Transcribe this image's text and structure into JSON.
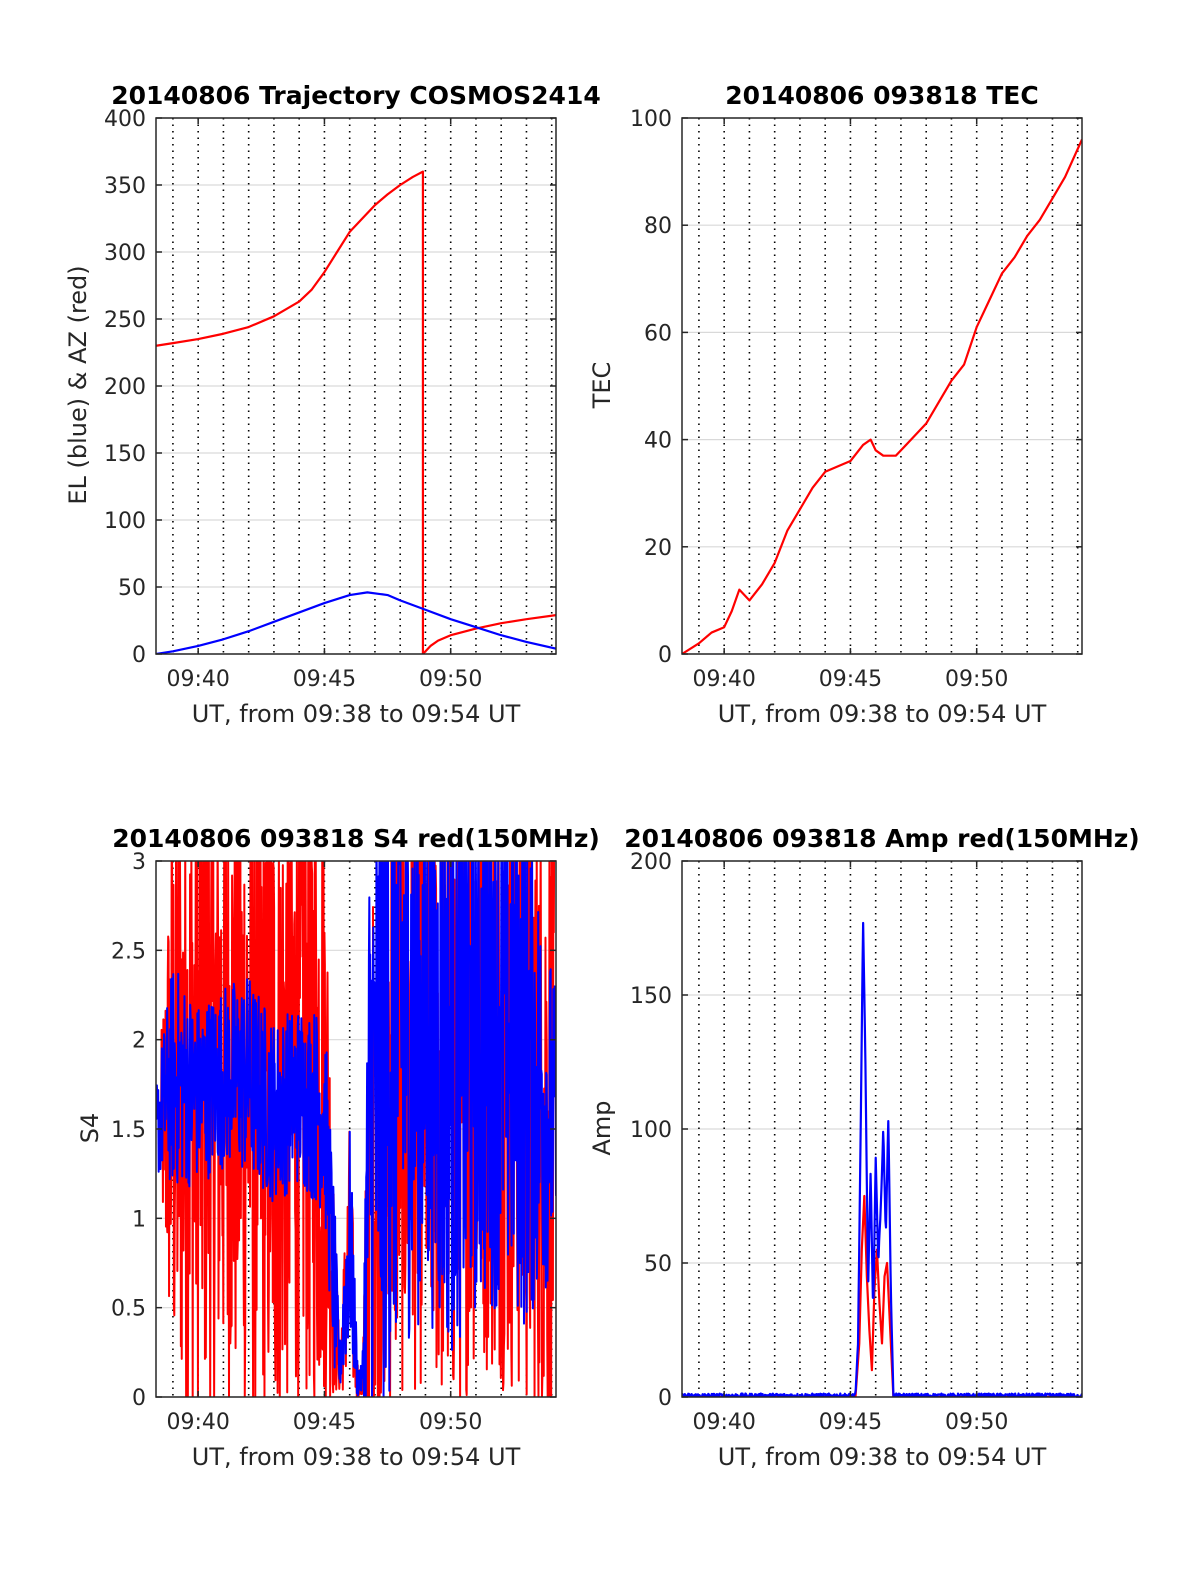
{
  "colors": {
    "red": "#ff0000",
    "blue": "#0000ff",
    "grid": "#d9d9d9",
    "axis": "#262626"
  },
  "chart_data": [
    {
      "type": "line",
      "title": "20140806 Trajectory COSMOS2414",
      "xlabel": "UT, from 09:38 to 09:54 UT",
      "ylabel": "EL (blue) & AZ (red)",
      "xlim": [
        38.33,
        54.17
      ],
      "ylim": [
        0,
        400
      ],
      "yticks": [
        0,
        50,
        100,
        150,
        200,
        250,
        300,
        350,
        400
      ],
      "xticks": [
        {
          "v": 40,
          "label": "09:40"
        },
        {
          "v": 45,
          "label": "09:45"
        },
        {
          "v": 50,
          "label": "09:50"
        }
      ],
      "minor_x_step": 1,
      "grid": true,
      "series": [
        {
          "color": "red",
          "x": [
            38.33,
            39,
            40,
            41,
            42,
            43,
            44,
            44.5,
            45,
            45.5,
            46,
            46.5,
            47,
            47.5,
            48,
            48.5,
            48.9,
            48.9,
            49.2,
            49.5,
            50,
            51,
            52,
            53,
            54.17
          ],
          "y": [
            230,
            232,
            235,
            239,
            244,
            252,
            263,
            272,
            285,
            300,
            315,
            325,
            335,
            343,
            350,
            356,
            360,
            0,
            6,
            10,
            14,
            19,
            23,
            26,
            29
          ]
        },
        {
          "color": "blue",
          "x": [
            38.33,
            39,
            40,
            41,
            42,
            43,
            44,
            45,
            46,
            46.7,
            47.5,
            48,
            49,
            50,
            51,
            52,
            53,
            54.17
          ],
          "y": [
            0,
            2,
            6,
            11,
            17,
            24,
            31,
            38,
            44,
            46,
            44,
            40,
            33,
            26,
            20,
            14,
            9,
            4
          ]
        }
      ]
    },
    {
      "type": "line",
      "title": "20140806 093818 TEC",
      "xlabel": "UT, from 09:38 to 09:54 UT",
      "ylabel": "TEC",
      "xlim": [
        38.33,
        54.17
      ],
      "ylim": [
        0,
        100
      ],
      "yticks": [
        0,
        20,
        40,
        60,
        80,
        100
      ],
      "xticks": [
        {
          "v": 40,
          "label": "09:40"
        },
        {
          "v": 45,
          "label": "09:45"
        },
        {
          "v": 50,
          "label": "09:50"
        }
      ],
      "minor_x_step": 1,
      "grid": true,
      "series": [
        {
          "color": "red",
          "x": [
            38.33,
            39,
            39.5,
            40,
            40.3,
            40.6,
            41,
            41.5,
            42,
            42.5,
            43,
            43.5,
            44,
            44.5,
            45,
            45.5,
            45.8,
            46,
            46.3,
            46.8,
            47.2,
            48,
            48.5,
            49,
            49.5,
            50,
            50.5,
            51,
            51.5,
            52,
            52.5,
            53,
            53.5,
            54.17
          ],
          "y": [
            0,
            2,
            4,
            5,
            8,
            12,
            10,
            13,
            17,
            23,
            27,
            31,
            34,
            35,
            36,
            39,
            40,
            38,
            37,
            37,
            39,
            43,
            47,
            51,
            54,
            61,
            66,
            71,
            74,
            78,
            81,
            85,
            89,
            96
          ]
        }
      ]
    },
    {
      "type": "line",
      "title": "20140806 093818 S4 red(150MHz)",
      "xlabel": "UT, from 09:38 to 09:54 UT",
      "ylabel": "S4",
      "xlim": [
        38.33,
        54.17
      ],
      "ylim": [
        0,
        3
      ],
      "yticks": [
        0,
        0.5,
        1,
        1.5,
        2,
        2.5,
        3
      ],
      "xticks": [
        {
          "v": 40,
          "label": "09:40"
        },
        {
          "v": 45,
          "label": "09:45"
        },
        {
          "v": 50,
          "label": "09:50"
        }
      ],
      "minor_x_step": 1,
      "grid": true,
      "series": [
        {
          "color": "red",
          "noisy": true,
          "x": [
            38.5,
            39,
            40,
            41,
            42,
            43,
            44,
            45,
            45.4,
            45.6,
            46,
            46.3,
            46.5,
            46.8,
            47.5,
            48,
            49,
            50,
            51,
            52,
            53,
            54.1
          ],
          "y": [
            1.5,
            1.7,
            1.8,
            1.9,
            1.8,
            1.7,
            1.9,
            1.8,
            0.5,
            0.15,
            0.8,
            0.1,
            0.05,
            1.2,
            1.8,
            1.9,
            2.0,
            1.7,
            2.1,
            2.0,
            1.8,
            1.5
          ],
          "amp": [
            0.3,
            1.4,
            1.5,
            1.5,
            1.5,
            1.5,
            1.5,
            1.5,
            0.4,
            0.1,
            0.6,
            0.1,
            0.05,
            1.2,
            1.5,
            1.5,
            1.5,
            1.5,
            1.5,
            1.5,
            1.5,
            1.5
          ]
        },
        {
          "color": "blue",
          "noisy": true,
          "x": [
            38.33,
            39,
            40,
            41,
            42,
            43,
            44,
            45,
            45.4,
            45.6,
            46,
            46.3,
            46.5,
            46.8,
            47.5,
            48,
            49,
            50,
            51,
            52,
            53,
            54.17
          ],
          "y": [
            1.5,
            1.8,
            1.7,
            1.8,
            1.8,
            1.6,
            1.7,
            1.6,
            0.6,
            0.15,
            0.9,
            0.12,
            0.08,
            1.5,
            2.0,
            2.2,
            2.0,
            1.9,
            2.0,
            2.2,
            1.9,
            1.5
          ],
          "amp": [
            0.2,
            0.5,
            0.4,
            0.4,
            0.45,
            0.4,
            0.4,
            0.45,
            0.4,
            0.1,
            0.5,
            0.1,
            0.05,
            1.5,
            1.6,
            1.5,
            1.2,
            1.3,
            1.2,
            1.3,
            1.2,
            0.6
          ]
        }
      ]
    },
    {
      "type": "line",
      "title": "20140806 093818 Amp red(150MHz)",
      "xlabel": "UT, from 09:38 to 09:54 UT",
      "ylabel": "Amp",
      "xlim": [
        38.33,
        54.17
      ],
      "ylim": [
        0,
        200
      ],
      "yticks": [
        0,
        50,
        100,
        150,
        200
      ],
      "xticks": [
        {
          "v": 40,
          "label": "09:40"
        },
        {
          "v": 45,
          "label": "09:45"
        },
        {
          "v": 50,
          "label": "09:50"
        }
      ],
      "minor_x_step": 1,
      "grid": true,
      "series": [
        {
          "color": "red",
          "x": [
            38.33,
            45.2,
            45.35,
            45.45,
            45.55,
            45.65,
            45.75,
            45.85,
            45.95,
            46.05,
            46.15,
            46.25,
            46.35,
            46.45,
            46.55,
            46.7,
            54.17
          ],
          "y": [
            0,
            0,
            20,
            55,
            75,
            45,
            25,
            10,
            40,
            55,
            35,
            20,
            45,
            50,
            30,
            0,
            0
          ]
        },
        {
          "color": "blue",
          "x": [
            38.33,
            45.2,
            45.3,
            45.4,
            45.5,
            45.55,
            45.6,
            45.7,
            45.8,
            45.9,
            46.0,
            46.1,
            46.2,
            46.3,
            46.4,
            46.5,
            46.6,
            46.7,
            54.17
          ],
          "y": [
            0.5,
            0.5,
            20,
            95,
            178,
            150,
            120,
            40,
            85,
            30,
            90,
            50,
            70,
            100,
            60,
            104,
            40,
            0.5,
            0.5
          ],
          "noise": 0.8
        }
      ]
    }
  ]
}
